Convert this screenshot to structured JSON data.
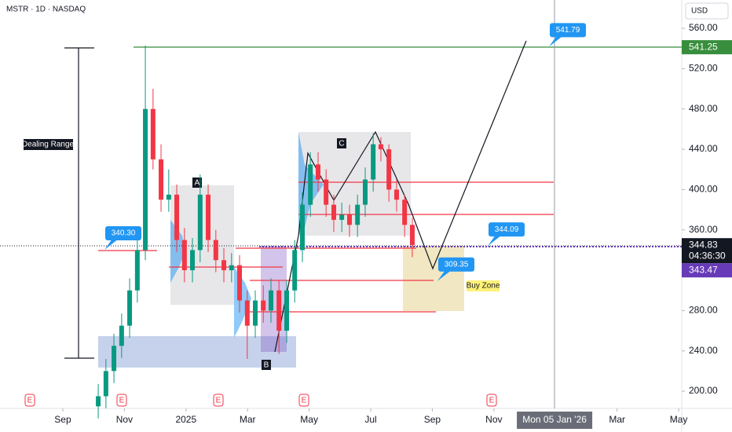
{
  "header": {
    "symbol": "MSTR · 1D · NASDAQ",
    "currency": "USD"
  },
  "chart_data": {
    "type": "candlestick",
    "x": [
      1.15,
      1.4,
      1.66,
      1.91,
      2.17,
      2.42,
      2.68,
      2.93,
      3.19,
      3.44,
      3.7,
      3.95,
      4.21,
      4.46,
      4.72,
      4.97,
      5.23,
      5.48,
      5.74,
      5.99,
      6.25,
      6.51,
      6.76,
      7.02,
      7.27,
      7.53,
      7.78,
      8.04,
      8.29,
      8.55,
      8.8,
      9.06,
      9.31,
      9.57,
      9.82,
      10.08,
      10.33,
      10.59,
      10.84,
      11.1,
      11.35
    ],
    "open": [
      185,
      195,
      220,
      245,
      265,
      300,
      340,
      480,
      430,
      390,
      395,
      350,
      320,
      340,
      395,
      350,
      330,
      320,
      325,
      290,
      265,
      290,
      280,
      300,
      260,
      300,
      340,
      385,
      425,
      410,
      385,
      370,
      375,
      365,
      385,
      410,
      445,
      440,
      400,
      390,
      365
    ],
    "high": [
      207,
      232,
      257,
      277,
      312,
      355,
      543,
      500,
      445,
      420,
      405,
      362,
      352,
      415,
      405,
      360,
      342,
      337,
      335,
      300,
      300,
      305,
      312,
      310,
      310,
      350,
      397,
      437,
      437,
      420,
      395,
      387,
      385,
      395,
      422,
      456,
      452,
      445,
      410,
      395,
      372
    ],
    "low": [
      173,
      183,
      208,
      233,
      253,
      288,
      330,
      420,
      378,
      378,
      338,
      308,
      308,
      328,
      338,
      318,
      308,
      308,
      278,
      232,
      253,
      268,
      268,
      237,
      248,
      288,
      328,
      373,
      398,
      373,
      358,
      358,
      353,
      353,
      373,
      398,
      428,
      388,
      378,
      353,
      333
    ],
    "close": [
      195,
      220,
      245,
      265,
      300,
      340,
      480,
      430,
      390,
      395,
      350,
      320,
      340,
      395,
      350,
      330,
      320,
      325,
      290,
      265,
      290,
      280,
      300,
      260,
      300,
      340,
      385,
      425,
      410,
      385,
      370,
      375,
      365,
      385,
      410,
      445,
      440,
      400,
      390,
      365,
      345
    ],
    "up_color": "#089981",
    "down_color": "#f23645",
    "xlim": [
      -2.04,
      20.1
    ],
    "xticks": [
      {
        "value": 0,
        "label": "Sep"
      },
      {
        "value": 2,
        "label": "Nov"
      },
      {
        "value": 4,
        "label": "2025"
      },
      {
        "value": 6,
        "label": "Mar"
      },
      {
        "value": 8,
        "label": "May"
      },
      {
        "value": 10,
        "label": "Jul"
      },
      {
        "value": 12,
        "label": "Sep"
      },
      {
        "value": 14,
        "label": "Nov"
      },
      {
        "value": 18,
        "label": "Mar"
      },
      {
        "value": 20,
        "label": "May"
      }
    ],
    "crosshair": {
      "value": 15.97,
      "label": "Mon 05 Jan '26"
    },
    "ylim": [
      182.9,
      588.1
    ],
    "yticks": [
      {
        "value": 560,
        "label": "560.00"
      },
      {
        "value": 520,
        "label": "520.00"
      },
      {
        "value": 480,
        "label": "480.00"
      },
      {
        "value": 440,
        "label": "440.00"
      },
      {
        "value": 400,
        "label": "400.00"
      },
      {
        "value": 360,
        "label": "360.00"
      },
      {
        "value": 280,
        "label": "280.00"
      },
      {
        "value": 240,
        "label": "240.00"
      },
      {
        "value": 200,
        "label": "200.00"
      }
    ],
    "price_tags": [
      {
        "value": 541.25,
        "label": "541.25",
        "color": "#388e3c"
      },
      {
        "value": 344.83,
        "label": "344.83",
        "color": "#131722"
      },
      {
        "value": 343.47,
        "label": "343.47",
        "color": "#673ab7"
      }
    ],
    "countdown": "04:36:30",
    "callouts": [
      {
        "value": 340.3,
        "label": "340.30"
      },
      {
        "value": 541.79,
        "label": "541.79"
      },
      {
        "value": 344.09,
        "label": "344.09"
      },
      {
        "value": 309.35,
        "label": "309.35"
      }
    ],
    "annotations": {
      "dealing_range": "Dealing Range",
      "a": "A",
      "b": "B",
      "c": "C",
      "buy_zone": "Buy Zone"
    },
    "earnings": [
      "E",
      "E",
      "E",
      "E",
      "E"
    ]
  }
}
